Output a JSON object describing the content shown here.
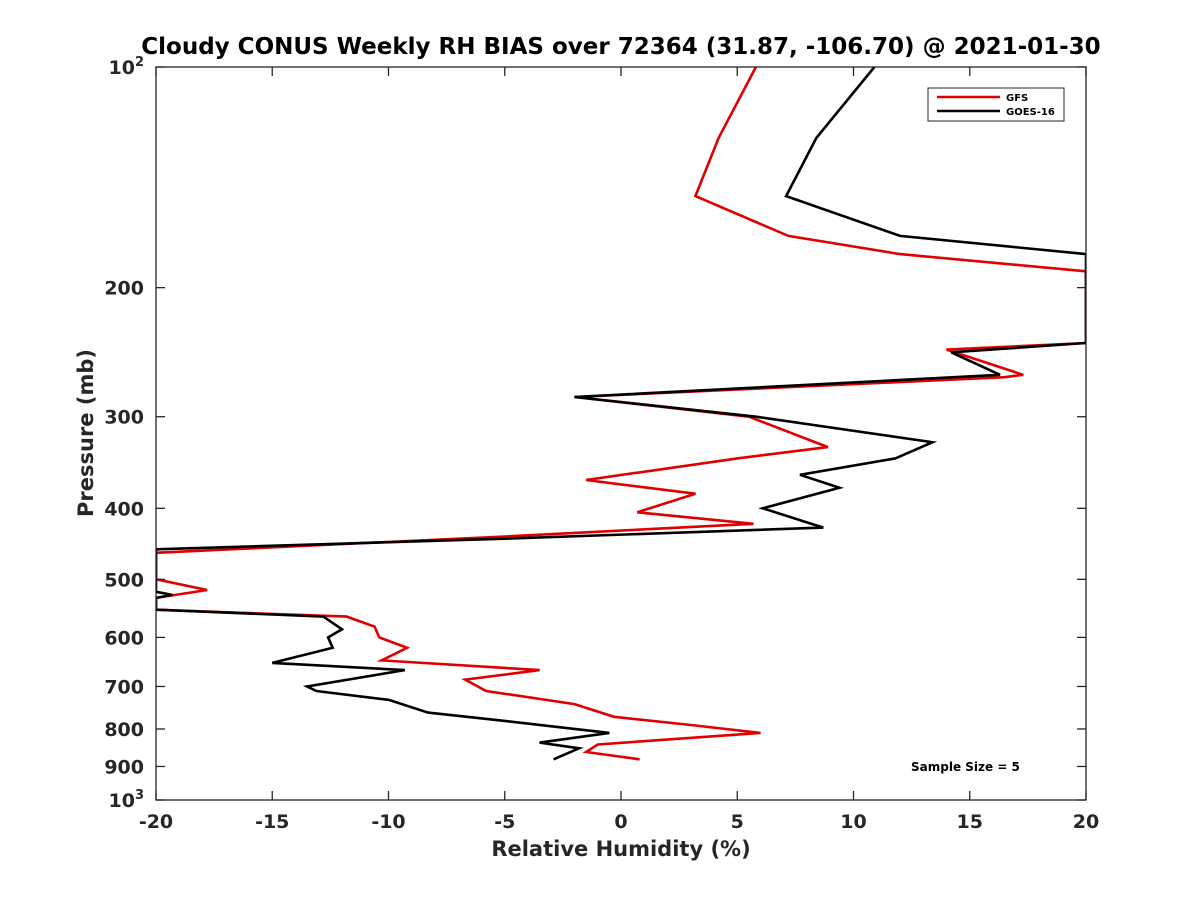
{
  "chart_data": {
    "type": "line",
    "title": "Cloudy CONUS Weekly RH BIAS over 72364 (31.87, -106.70) @ 2021-01-30",
    "xlabel": "Relative Humidity (%)",
    "ylabel": "Pressure (mb)",
    "xlim": [
      -20,
      20
    ],
    "ylim": [
      100,
      1000
    ],
    "y_scale": "log",
    "y_reversed": true,
    "x_ticks": [
      "-20",
      "-15",
      "-10",
      "-5",
      "0",
      "5",
      "10",
      "15",
      "20"
    ],
    "y_ticks": [
      {
        "value": 100,
        "base": "10",
        "exp": "2"
      },
      {
        "value": 200,
        "label": "200"
      },
      {
        "value": 300,
        "label": "300"
      },
      {
        "value": 400,
        "label": "400"
      },
      {
        "value": 500,
        "label": "500"
      },
      {
        "value": 600,
        "label": "600"
      },
      {
        "value": 700,
        "label": "700"
      },
      {
        "value": 800,
        "label": "800"
      },
      {
        "value": 900,
        "label": "900"
      },
      {
        "value": 1000,
        "base": "10",
        "exp": "3"
      }
    ],
    "grid": false,
    "legend_position": "top-right",
    "series": [
      {
        "name": "GFS",
        "color": "#e00000",
        "points": [
          [
            5.8,
            100
          ],
          [
            4.2,
            125
          ],
          [
            3.2,
            150
          ],
          [
            7.2,
            170
          ],
          [
            12,
            180
          ],
          [
            20,
            190
          ],
          [
            20,
            238
          ],
          [
            14,
            243
          ],
          [
            17.3,
            263
          ],
          [
            16.5,
            265
          ],
          [
            -2,
            282
          ],
          [
            5.5,
            300
          ],
          [
            8.9,
            330
          ],
          [
            5,
            342
          ],
          [
            -1.5,
            366
          ],
          [
            3.2,
            382
          ],
          [
            0.7,
            405
          ],
          [
            5.7,
            420
          ],
          [
            -5,
            437
          ],
          [
            -20,
            460
          ],
          [
            -20,
            500
          ],
          [
            -17.8,
            517
          ],
          [
            -20,
            530
          ],
          [
            -20,
            550
          ],
          [
            -11.8,
            562
          ],
          [
            -10.6,
            580
          ],
          [
            -10.4,
            600
          ],
          [
            -9.2,
            620
          ],
          [
            -10.3,
            645
          ],
          [
            -3.5,
            665
          ],
          [
            -6.7,
            685
          ],
          [
            -5.8,
            710
          ],
          [
            -2,
            740
          ],
          [
            -0.3,
            770
          ],
          [
            3,
            790
          ],
          [
            6,
            810
          ],
          [
            -1,
            840
          ],
          [
            -1.5,
            860
          ],
          [
            0.8,
            880
          ]
        ]
      },
      {
        "name": "GOES-16",
        "color": "#000000",
        "points": [
          [
            10.9,
            100
          ],
          [
            8.4,
            125
          ],
          [
            7.1,
            150
          ],
          [
            12,
            170
          ],
          [
            20,
            180
          ],
          [
            20,
            238
          ],
          [
            14.2,
            245
          ],
          [
            16.3,
            263
          ],
          [
            -2,
            282
          ],
          [
            5.8,
            300
          ],
          [
            13.4,
            325
          ],
          [
            11.8,
            342
          ],
          [
            7.7,
            360
          ],
          [
            9.4,
            375
          ],
          [
            6.1,
            400
          ],
          [
            8.7,
            425
          ],
          [
            -5,
            440
          ],
          [
            -20,
            455
          ],
          [
            -20,
            520
          ],
          [
            -19.3,
            525
          ],
          [
            -20,
            530
          ],
          [
            -20,
            550
          ],
          [
            -12.8,
            562
          ],
          [
            -12,
            585
          ],
          [
            -12.6,
            600
          ],
          [
            -12.4,
            620
          ],
          [
            -15,
            650
          ],
          [
            -9.3,
            665
          ],
          [
            -13.5,
            700
          ],
          [
            -13.1,
            710
          ],
          [
            -10,
            730
          ],
          [
            -8.3,
            760
          ],
          [
            -5,
            780
          ],
          [
            -0.5,
            810
          ],
          [
            -3.5,
            835
          ],
          [
            -1.8,
            850
          ],
          [
            -2.9,
            880
          ]
        ]
      }
    ],
    "annotation": "Sample Size = 5"
  }
}
